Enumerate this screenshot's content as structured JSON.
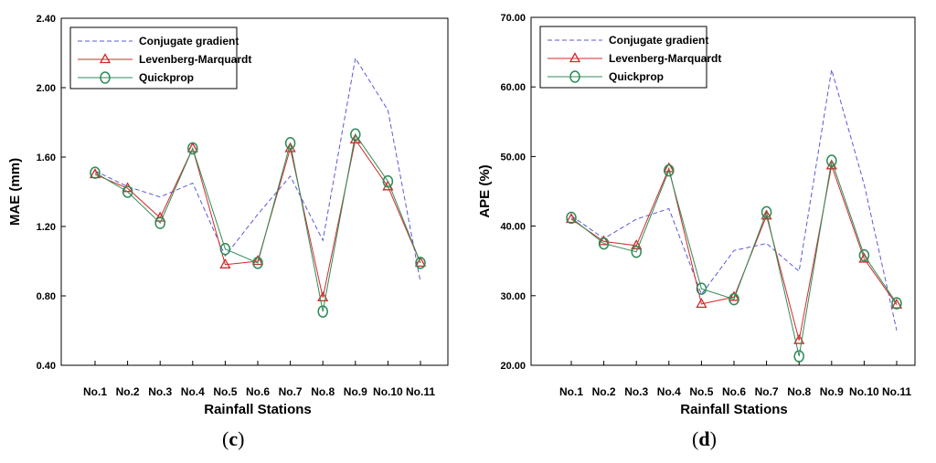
{
  "chart_data": [
    {
      "type": "line",
      "panel_label": "c",
      "xlabel": "Rainfall Stations",
      "ylabel": "MAE (mm)",
      "categories": [
        "No.1",
        "No.2",
        "No.3",
        "No.4",
        "No.5",
        "No.6",
        "No.7",
        "No.8",
        "No.9",
        "No.10",
        "No.11"
      ],
      "ylim": [
        0.4,
        2.4
      ],
      "yticks": [
        "0.40",
        "0.80",
        "1.20",
        "1.60",
        "2.00",
        "2.40"
      ],
      "grid": false,
      "legend_position": "top-left",
      "series": [
        {
          "name": "Conjugate gradient",
          "color": "#5a5ad6",
          "dash": true,
          "marker": "none",
          "values": [
            1.52,
            1.43,
            1.37,
            1.45,
            1.03,
            1.27,
            1.49,
            1.12,
            2.17,
            1.87,
            0.88
          ]
        },
        {
          "name": "Levenberg-Marquardt",
          "color": "#d42a2a",
          "dash": false,
          "marker": "triangle",
          "values": [
            1.5,
            1.42,
            1.25,
            1.65,
            0.98,
            1.0,
            1.65,
            0.79,
            1.7,
            1.43,
            0.99
          ]
        },
        {
          "name": "Quickprop",
          "color": "#2e8b57",
          "dash": false,
          "marker": "circle",
          "values": [
            1.51,
            1.4,
            1.22,
            1.65,
            1.07,
            0.99,
            1.68,
            0.71,
            1.73,
            1.46,
            0.99
          ]
        }
      ]
    },
    {
      "type": "line",
      "panel_label": "d",
      "xlabel": "Rainfall Stations",
      "ylabel": "APE (%)",
      "categories": [
        "No.1",
        "No.2",
        "No.3",
        "No.4",
        "No.5",
        "No.6",
        "No.7",
        "No.8",
        "No.9",
        "No.10",
        "No.11"
      ],
      "ylim": [
        20.0,
        70.0
      ],
      "yticks": [
        "20.00",
        "30.00",
        "40.00",
        "50.00",
        "60.00",
        "70.00"
      ],
      "grid": false,
      "legend_position": "top-left",
      "series": [
        {
          "name": "Conjugate gradient",
          "color": "#5a5ad6",
          "dash": true,
          "marker": "none",
          "values": [
            41.5,
            38.2,
            41.0,
            42.5,
            30.2,
            36.5,
            37.5,
            33.5,
            62.5,
            46.0,
            25.0
          ]
        },
        {
          "name": "Levenberg-Marquardt",
          "color": "#d42a2a",
          "dash": false,
          "marker": "triangle",
          "values": [
            41.0,
            37.8,
            37.2,
            48.3,
            28.8,
            29.8,
            41.5,
            23.6,
            48.7,
            35.3,
            28.7
          ]
        },
        {
          "name": "Quickprop",
          "color": "#2e8b57",
          "dash": false,
          "marker": "circle",
          "values": [
            41.2,
            37.5,
            36.3,
            48.0,
            31.0,
            29.5,
            42.0,
            21.3,
            49.4,
            35.8,
            28.9
          ]
        }
      ]
    }
  ]
}
